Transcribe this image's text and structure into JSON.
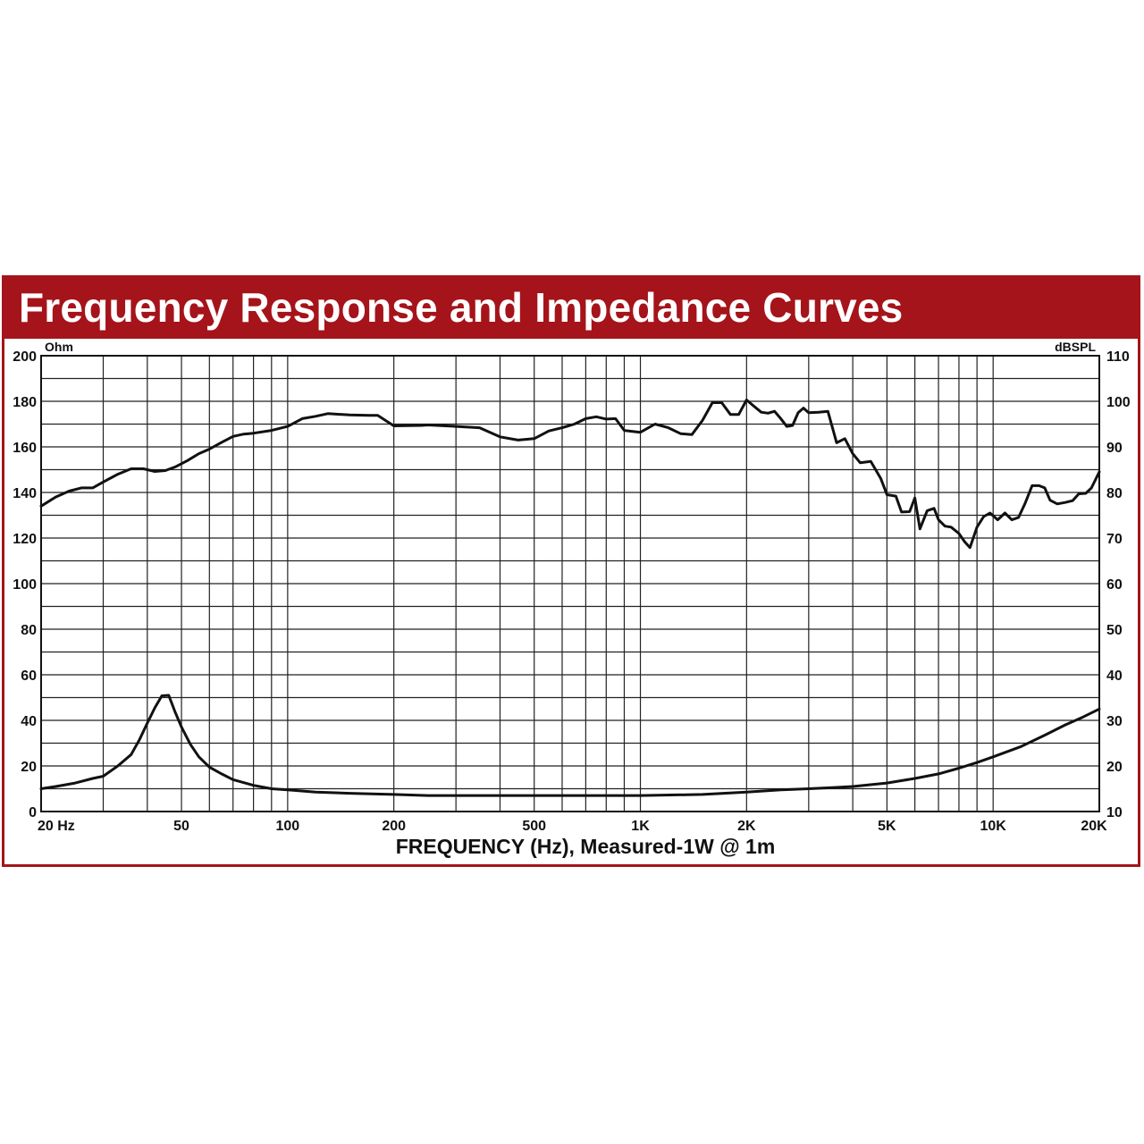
{
  "title": "Frequency Response and Impedance Curves",
  "chart_data": {
    "type": "line",
    "title": "Frequency Response and Impedance Curves",
    "xlabel": "FREQUENCY (Hz), Measured-1W @ 1m",
    "x_scale": "log",
    "xlim": [
      20,
      20000
    ],
    "x_tick_labels": [
      {
        "value": 20,
        "label": "20 Hz"
      },
      {
        "value": 50,
        "label": "50"
      },
      {
        "value": 100,
        "label": "100"
      },
      {
        "value": 200,
        "label": "200"
      },
      {
        "value": 500,
        "label": "500"
      },
      {
        "value": 1000,
        "label": "1K"
      },
      {
        "value": 2000,
        "label": "2K"
      },
      {
        "value": 5000,
        "label": "5K"
      },
      {
        "value": 10000,
        "label": "10K"
      },
      {
        "value": 20000,
        "label": "20K"
      }
    ],
    "y_left": {
      "label": "Ohm",
      "range": [
        0,
        200
      ],
      "ticks": [
        0,
        20,
        40,
        60,
        80,
        100,
        120,
        140,
        160,
        180,
        200
      ]
    },
    "y_right": {
      "label": "dBSPL",
      "range": [
        10,
        110
      ],
      "ticks": [
        10,
        20,
        30,
        40,
        50,
        60,
        70,
        80,
        90,
        100,
        110
      ]
    },
    "grid": true,
    "series": [
      {
        "axis": "right",
        "x": [
          20,
          22,
          24,
          26,
          28,
          30,
          33,
          36,
          39,
          42,
          45,
          48,
          52,
          56,
          60,
          65,
          70,
          75,
          80,
          90,
          100,
          110,
          120,
          130,
          150,
          170,
          180,
          200,
          240,
          250,
          300,
          350,
          400,
          450,
          500,
          550,
          600,
          650,
          700,
          750,
          800,
          850,
          900,
          1000,
          1100,
          1200,
          1300,
          1400,
          1500,
          1600,
          1700,
          1800,
          1900,
          2000,
          2100,
          2200,
          2300,
          2400,
          2500,
          2600,
          2700,
          2800,
          2900,
          3000,
          3200,
          3400,
          3600,
          3800,
          4000,
          4200,
          4500,
          4800,
          5000,
          5300,
          5500,
          5800,
          6000,
          6200,
          6500,
          6800,
          7000,
          7300,
          7600,
          8000,
          8300,
          8600,
          9000,
          9400,
          9800,
          10300,
          10800,
          11300,
          11800,
          12300,
          12900,
          13500,
          14000,
          14500,
          15200,
          16000,
          16800,
          17500,
          18300,
          19000,
          20000
        ],
        "y": [
          77,
          79,
          80.3,
          81,
          81,
          82.3,
          84,
          85.2,
          85.2,
          84.6,
          84.8,
          85.6,
          87,
          88.5,
          89.5,
          91,
          92.3,
          92.8,
          93,
          93.6,
          94.5,
          96.2,
          96.7,
          97.3,
          97,
          96.9,
          96.9,
          94.6,
          94.7,
          94.8,
          94.5,
          94.2,
          92.2,
          91.5,
          91.8,
          93.5,
          94.2,
          95,
          96.2,
          96.6,
          96.1,
          96.2,
          93.6,
          93.2,
          95,
          94.2,
          92.9,
          92.7,
          95.8,
          99.7,
          99.7,
          97.1,
          97.1,
          100.3,
          98.9,
          97.6,
          97.4,
          97.8,
          96.2,
          94.5,
          94.7,
          97.5,
          98.5,
          97.5,
          97.6,
          97.8,
          90.9,
          91.8,
          88.5,
          86.5,
          86.8,
          83.1,
          79.5,
          79.2,
          75.7,
          75.8,
          78.8,
          72,
          76,
          76.5,
          74,
          72.6,
          72.4,
          71,
          69.2,
          67.9,
          72.4,
          74.7,
          75.5,
          74,
          75.5,
          74,
          74.5,
          77.5,
          81.5,
          81.5,
          81,
          78.3,
          77.5,
          77.8,
          78.2,
          79.7,
          79.8,
          81,
          84.5
        ]
      },
      {
        "axis": "left",
        "x": [
          20,
          22,
          25,
          28,
          30,
          33,
          36,
          38,
          40,
          42,
          44,
          46,
          48,
          50,
          53,
          56,
          60,
          65,
          70,
          80,
          90,
          100,
          120,
          150,
          200,
          250,
          300,
          400,
          500,
          700,
          1000,
          1500,
          2000,
          2500,
          3000,
          3500,
          4000,
          5000,
          6000,
          7000,
          8000,
          9000,
          10000,
          12000,
          14000,
          16000,
          18000,
          20000
        ],
        "y": [
          10,
          11,
          12.5,
          14.5,
          15.5,
          20,
          25,
          31.5,
          38.8,
          45.5,
          50.8,
          51,
          43.5,
          37,
          29.5,
          24,
          19.5,
          16.5,
          14,
          11.5,
          10,
          9.5,
          8.5,
          8,
          7.5,
          7,
          7,
          7,
          7,
          7,
          7,
          7.5,
          8.5,
          9.5,
          10,
          10.5,
          11,
          12.5,
          14.5,
          16.5,
          19,
          21.5,
          24,
          28.5,
          33.5,
          38,
          41.5,
          45
        ]
      }
    ]
  }
}
